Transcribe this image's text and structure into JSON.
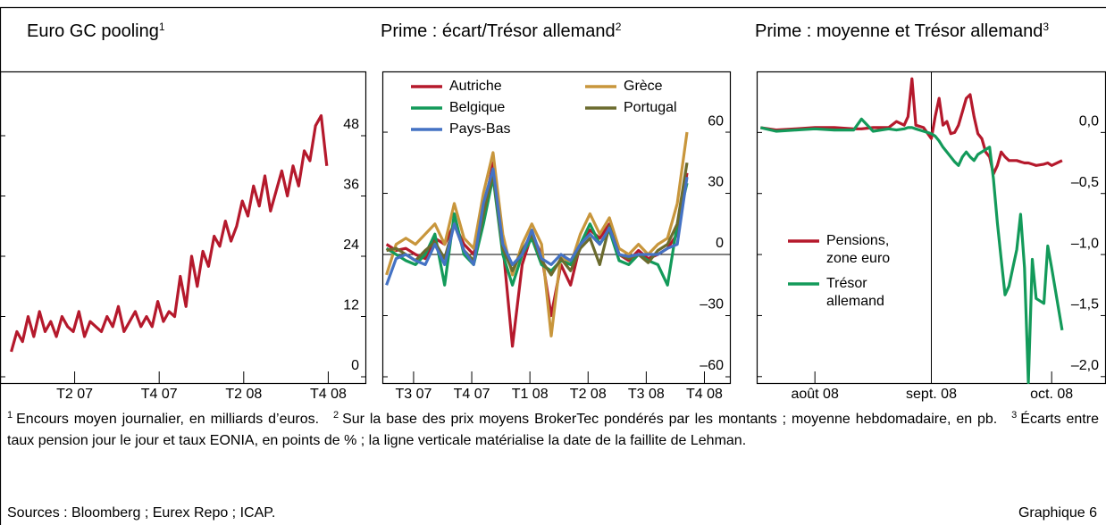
{
  "chart_data": [
    {
      "type": "line",
      "title": "Euro GC pooling",
      "title_note": "1",
      "x": [
        0,
        0.4,
        0.8,
        1.2,
        1.6,
        2,
        2.4,
        2.8,
        3.2,
        3.6,
        4,
        4.4,
        4.8,
        5.2,
        5.6,
        6,
        6.4,
        6.8,
        7.2,
        7.6,
        8,
        8.4,
        8.8,
        9.2,
        9.6,
        10,
        10.4,
        10.8,
        11.2,
        11.6,
        12,
        12.4,
        12.8,
        13.2,
        13.6,
        14,
        14.4,
        14.8,
        15.2,
        15.6,
        16,
        16.4,
        16.8,
        17.2,
        17.6,
        18,
        18.4,
        18.8,
        19.2,
        19.6,
        20,
        20.4,
        20.8,
        21.2,
        21.6,
        22,
        22.4
      ],
      "series": [
        {
          "color": "#b5192c",
          "values": [
            5,
            9,
            7,
            12,
            8,
            13,
            9,
            11,
            8,
            12,
            10,
            9,
            13,
            8,
            11,
            10,
            9,
            12,
            10,
            14,
            9,
            11,
            13,
            10,
            12,
            10,
            15,
            11,
            13,
            12,
            20,
            14,
            24,
            18,
            25,
            22,
            28,
            26,
            31,
            27,
            30,
            35,
            32,
            38,
            34,
            40,
            33,
            37,
            41,
            36,
            42,
            38,
            45,
            43,
            50,
            52,
            42
          ]
        }
      ],
      "xlim": [
        -0.8,
        25.2
      ],
      "xticks": [
        {
          "value": 4.5,
          "label": "T2 07"
        },
        {
          "value": 10.5,
          "label": "T4 07"
        },
        {
          "value": 16.5,
          "label": "T2 08"
        },
        {
          "value": 22.5,
          "label": "T4 08"
        }
      ],
      "ylim": [
        -1.42,
        60.8
      ],
      "yticks": [
        0,
        12,
        24,
        36,
        48
      ]
    },
    {
      "type": "line",
      "title": "Prime : écart/Trésor allemand",
      "title_note": "2",
      "x": [
        6.1,
        6.6,
        7.1,
        7.6,
        8.1,
        8.6,
        9.1,
        9.6,
        10.1,
        10.6,
        11.1,
        11.6,
        12.1,
        12.6,
        13.1,
        13.6,
        14.1,
        14.6,
        15.1,
        15.6,
        16.1,
        16.6,
        17.1,
        17.6,
        18.1,
        18.6,
        19.1,
        19.6,
        20.1,
        20.6,
        21.1,
        21.6
      ],
      "series": [
        {
          "name": "Autriche",
          "color": "#b5192c",
          "values": [
            5,
            2,
            3,
            0,
            -2,
            8,
            5,
            15,
            5,
            0,
            20,
            45,
            5,
            -45,
            -5,
            10,
            0,
            -30,
            -5,
            -15,
            5,
            12,
            8,
            15,
            0,
            -3,
            2,
            -2,
            0,
            3,
            10,
            40
          ]
        },
        {
          "name": "Grèce",
          "color": "#c8963c",
          "values": [
            -10,
            5,
            8,
            5,
            10,
            15,
            5,
            25,
            8,
            3,
            30,
            50,
            10,
            -10,
            5,
            15,
            5,
            -40,
            0,
            -5,
            10,
            20,
            10,
            18,
            3,
            0,
            5,
            0,
            5,
            8,
            25,
            60
          ]
        },
        {
          "name": "Belgique",
          "color": "#139a5a",
          "values": [
            3,
            0,
            -3,
            -5,
            0,
            10,
            -15,
            20,
            0,
            -5,
            15,
            38,
            0,
            -15,
            0,
            8,
            -5,
            -8,
            -3,
            -5,
            5,
            15,
            5,
            12,
            -3,
            -5,
            0,
            -3,
            -5,
            -15,
            15,
            35
          ]
        },
        {
          "name": "Portugal",
          "color": "#6b6b2e",
          "values": [
            2,
            3,
            0,
            -3,
            2,
            6,
            -2,
            15,
            2,
            -3,
            20,
            40,
            3,
            -8,
            2,
            10,
            -3,
            -10,
            -2,
            -8,
            3,
            8,
            -5,
            14,
            0,
            -2,
            0,
            -4,
            2,
            5,
            15,
            45
          ]
        },
        {
          "name": "Pays-Bas",
          "color": "#4472c4",
          "values": [
            -15,
            -2,
            0,
            -3,
            -5,
            5,
            -5,
            15,
            2,
            -5,
            25,
            42,
            5,
            -5,
            0,
            12,
            -2,
            -5,
            0,
            -3,
            5,
            10,
            5,
            13,
            0,
            -1,
            0,
            0,
            0,
            3,
            5,
            38
          ]
        }
      ],
      "xlim": [
        5.89,
        23.86
      ],
      "xticks": [
        {
          "value": 7.5,
          "label": "T3 07"
        },
        {
          "value": 10.5,
          "label": "T4 07"
        },
        {
          "value": 13.5,
          "label": "T1 08"
        },
        {
          "value": 16.5,
          "label": "T2 08"
        },
        {
          "value": 19.5,
          "label": "T3 08"
        },
        {
          "value": 22.5,
          "label": "T4 08"
        }
      ],
      "ylim": [
        -63.5,
        89.8
      ],
      "yticks": [
        {
          "value": -60,
          "label": "–60"
        },
        {
          "value": -30,
          "label": "–30"
        },
        0,
        30,
        60
      ],
      "zero_line": true,
      "legend": "upper left"
    },
    {
      "type": "line",
      "title": "Prime : moyenne et Trésor allemand",
      "title_note": "3",
      "x": [
        1,
        5,
        10,
        15,
        20,
        25,
        27,
        30,
        34,
        36,
        38,
        39,
        40,
        41,
        43,
        45,
        46,
        47,
        48,
        49,
        50,
        51,
        52,
        53,
        54,
        55,
        56,
        57,
        58,
        59,
        60,
        61,
        62,
        63,
        64,
        65,
        66,
        67,
        68,
        69,
        70,
        71,
        72,
        74,
        75,
        76,
        78.7
      ],
      "series": [
        {
          "name": "Pensions, zone euro",
          "color": "#b5192c",
          "values": [
            0.04,
            0.02,
            0.03,
            0.04,
            0.04,
            0.03,
            0.03,
            0.04,
            0.04,
            0.09,
            0.06,
            0.13,
            0.44,
            0.06,
            0.04,
            -0.05,
            0.13,
            0.28,
            0.06,
            0.09,
            -0.01,
            0,
            0.06,
            0.17,
            0.28,
            0.31,
            0.13,
            -0.01,
            -0.05,
            -0.16,
            -0.2,
            -0.34,
            -0.27,
            -0.16,
            -0.2,
            -0.23,
            -0.23,
            -0.23,
            -0.24,
            -0.25,
            -0.25,
            -0.26,
            -0.27,
            -0.26,
            -0.25,
            -0.27,
            -0.23
          ]
        },
        {
          "name": "Trésor allemand",
          "color": "#139a5a",
          "values": [
            0.04,
            0.01,
            0.02,
            0.03,
            0.02,
            0.02,
            0.11,
            0.01,
            0.03,
            0.02,
            0.03,
            0.04,
            0.04,
            0.03,
            0.01,
            -0.01,
            -0.03,
            -0.07,
            -0.12,
            -0.16,
            -0.2,
            -0.24,
            -0.27,
            -0.2,
            -0.16,
            -0.2,
            -0.23,
            -0.18,
            -0.16,
            -0.14,
            -0.12,
            -0.38,
            -0.74,
            -1.04,
            -1.33,
            -1.26,
            -1.11,
            -0.96,
            -0.67,
            -1.11,
            -2.05,
            -1.04,
            -1.36,
            -1.4,
            -0.93,
            -1.11,
            -1.62
          ]
        }
      ],
      "xlim": [
        0,
        90
      ],
      "xticks": [
        {
          "value": 15,
          "label": "août 08"
        },
        {
          "value": 45,
          "label": "sept. 08"
        },
        {
          "value": 76,
          "label": "oct. 08"
        }
      ],
      "ylim": [
        -2.06,
        0.5
      ],
      "yticks": [
        {
          "value": -2,
          "label": "–2,0"
        },
        {
          "value": -1.5,
          "label": "–1,5"
        },
        {
          "value": -1,
          "label": "–1,0"
        },
        {
          "value": -0.5,
          "label": "–0,5"
        },
        {
          "value": 0,
          "label": "0,0"
        }
      ],
      "vline": 45,
      "legend": "lower left"
    }
  ],
  "footnotes": [
    {
      "mark": "1",
      "text": "Encours moyen journalier, en milliards d’euros."
    },
    {
      "mark": "2",
      "text": "Sur la base des prix moyens BrokerTec pondérés par les montants ; moyenne hebdomadaire, en pb."
    },
    {
      "mark": "3",
      "text": "Écarts entre taux pension jour le jour et taux EONIA, en points de % ; la ligne verticale matérialise la date de la faillite de Lehman."
    }
  ],
  "sources": "Sources : Bloomberg ; Eurex Repo ; ICAP.",
  "figure_label": "Graphique 6"
}
